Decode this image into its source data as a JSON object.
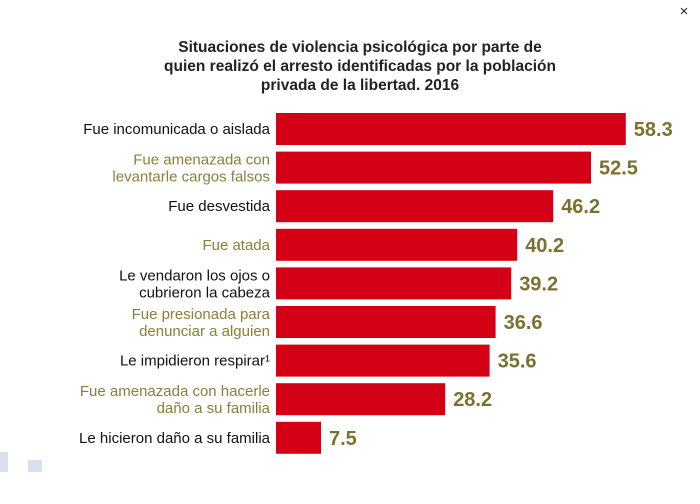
{
  "window": {
    "close_glyph": "×"
  },
  "chart_data": {
    "type": "bar",
    "orientation": "horizontal",
    "title": "Situaciones de violencia psicológica por parte de quien realizó el arresto identificadas por la población privada de la libertad. 2016",
    "title_lines": [
      "Situaciones de violencia psicológica por parte de",
      "quien realizó el arresto identificadas por la población",
      "privada de la libertad. 2016"
    ],
    "categories": [
      [
        "Fue incomunicada o aislada"
      ],
      [
        "Fue amenazada con",
        "levantarle cargos falsos"
      ],
      [
        "Fue desvestida"
      ],
      [
        "Fue atada"
      ],
      [
        "Le vendaron los ojos o",
        "cubrieron la cabeza"
      ],
      [
        "Fue presionada para",
        "denunciar a alguien"
      ],
      [
        "Le impidieron respirar¹"
      ],
      [
        "Fue amenazada con hacerle",
        "daño a su familia"
      ],
      [
        "Le hicieron daño a su familia"
      ]
    ],
    "values": [
      58.3,
      52.5,
      46.2,
      40.2,
      39.2,
      36.6,
      35.6,
      28.2,
      7.5
    ],
    "value_labels": [
      "58.3",
      "52.5",
      "46.2",
      "40.2",
      "39.2",
      "36.6",
      "35.6",
      "28.2",
      "7.5"
    ],
    "label_styles": [
      "dark",
      "olive",
      "dark",
      "olive",
      "dark",
      "olive",
      "dark",
      "olive",
      "dark"
    ],
    "colors": {
      "bar": "#d40016",
      "value": "#7a7030",
      "dark_label": "#111111",
      "olive_label": "#8a7f3a"
    },
    "xlim": [
      0,
      65
    ],
    "grid": false,
    "legend": "none"
  }
}
